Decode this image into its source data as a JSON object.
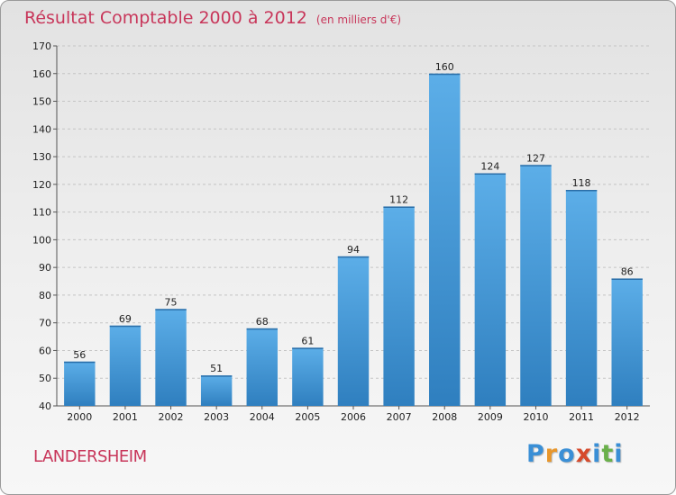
{
  "header": {
    "title": "Résultat Comptable 2000 à 2012",
    "unit": "(en milliers d'€)"
  },
  "footer": {
    "commune": "LANDERSHEIM",
    "logo_letters": [
      "P",
      "r",
      "o",
      "x",
      "i",
      "t",
      "i"
    ],
    "logo_colors": [
      "#3a8fd6",
      "#e8962a",
      "#3a8fd6",
      "#d64a2c",
      "#3a8fd6",
      "#6ab04a",
      "#3a8fd6"
    ]
  },
  "colors": {
    "bar_top": "#5caee8",
    "bar_bottom": "#2f7fbf",
    "title": "#c8365a"
  },
  "chart_data": {
    "type": "bar",
    "categories": [
      "2000",
      "2001",
      "2002",
      "2003",
      "2004",
      "2005",
      "2006",
      "2007",
      "2008",
      "2009",
      "2010",
      "2011",
      "2012"
    ],
    "values": [
      56,
      69,
      75,
      51,
      68,
      61,
      94,
      112,
      160,
      124,
      127,
      118,
      86
    ],
    "ylim": [
      40,
      170
    ],
    "yticks": [
      40,
      50,
      60,
      70,
      80,
      90,
      100,
      110,
      120,
      130,
      140,
      150,
      160,
      170
    ],
    "title": "Résultat Comptable 2000 à 2012",
    "xlabel": "",
    "ylabel": "",
    "grid": true,
    "data_labels": true
  }
}
